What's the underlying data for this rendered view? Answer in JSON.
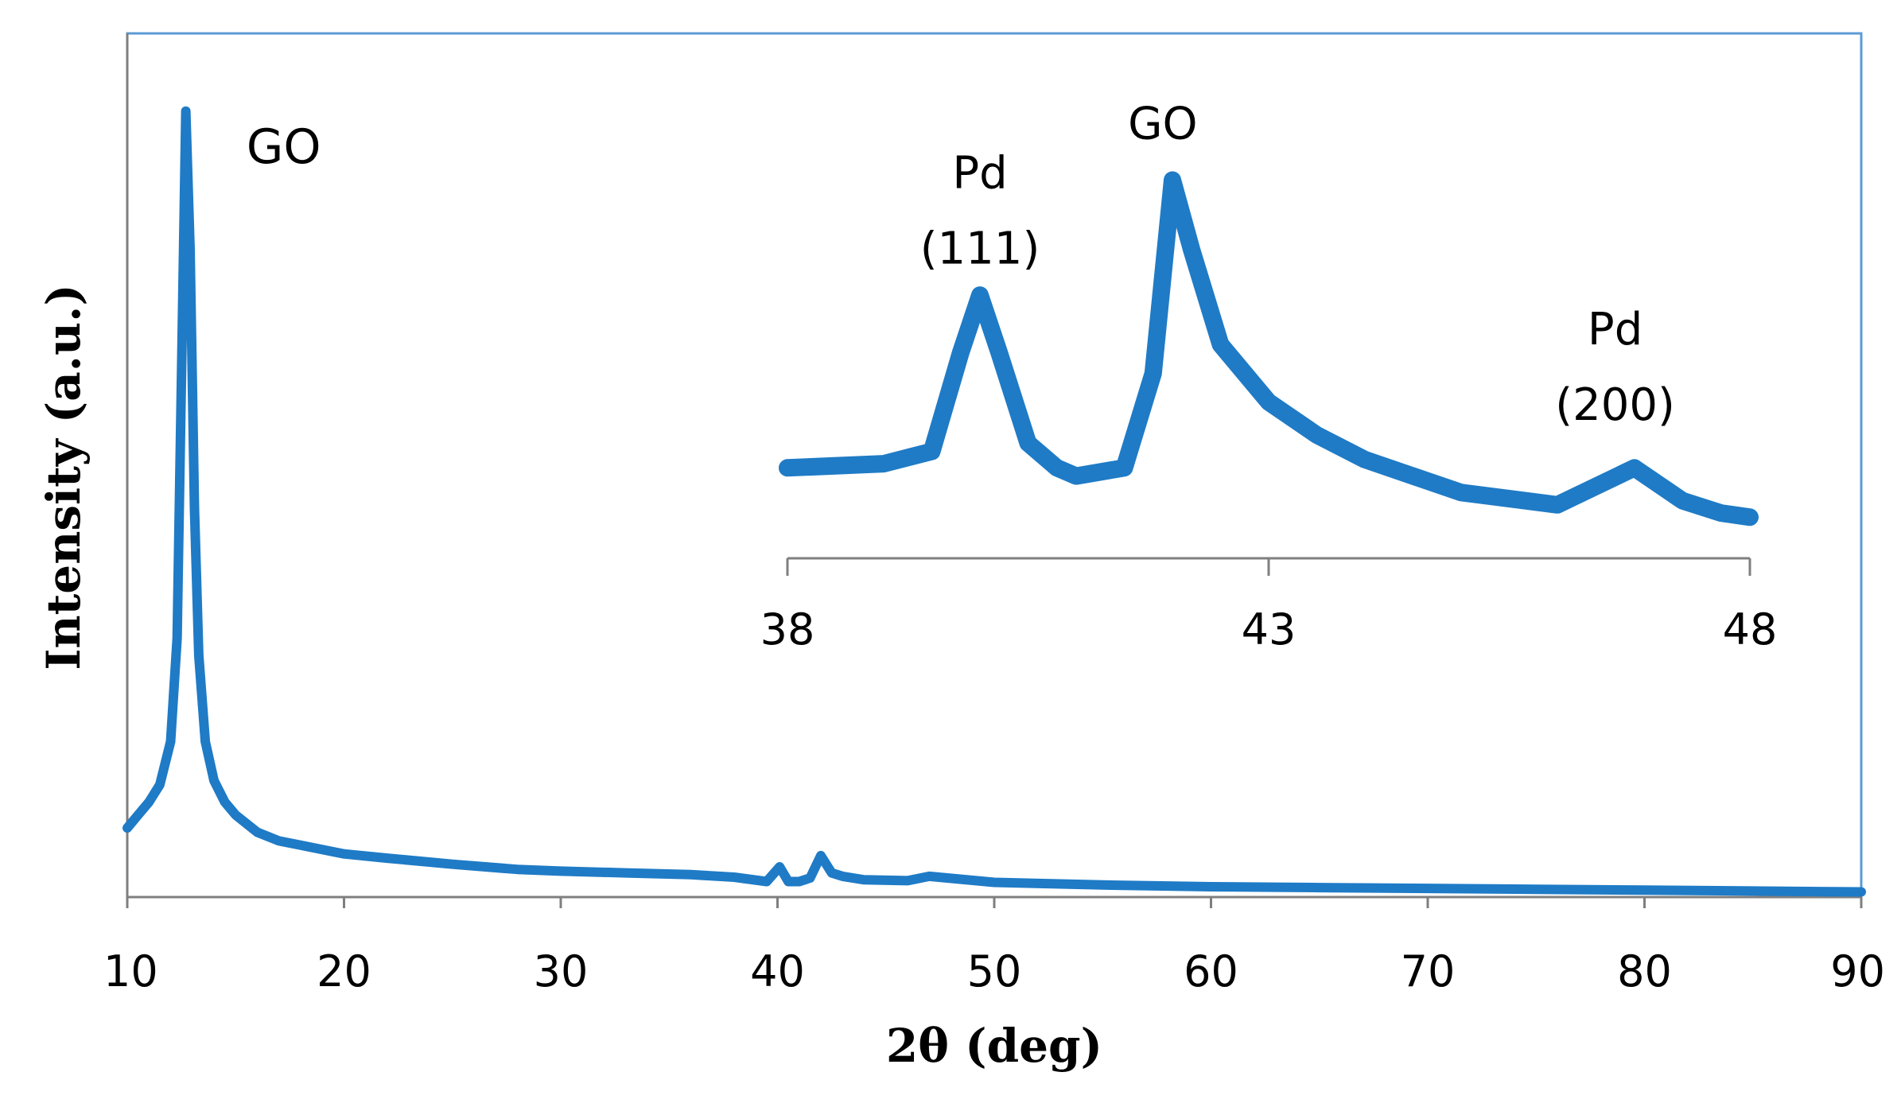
{
  "chart_data": [
    {
      "id": "main",
      "type": "line",
      "title": "",
      "xlabel": "2θ (deg)",
      "ylabel": "Intensity (a.u.)",
      "xlim": [
        10,
        90
      ],
      "ylim": [
        0,
        100
      ],
      "x_ticks": [
        "10",
        "20",
        "30",
        "40",
        "50",
        "60",
        "70",
        "80",
        "90"
      ],
      "y_ticks": [],
      "grid": false,
      "legend": "none",
      "series_color": "#1f7bc6",
      "frame_color": "#5b9bd5",
      "series": [
        {
          "x": [
            10,
            10.5,
            11,
            11.5,
            12,
            12.3,
            12.5,
            12.7,
            12.9,
            13.1,
            13.3,
            13.6,
            14,
            14.5,
            15,
            16,
            17,
            18,
            20,
            22,
            25,
            28,
            30,
            33,
            36,
            38,
            39.5,
            40.1,
            40.5,
            41,
            41.5,
            42,
            42.5,
            43,
            44,
            46,
            47,
            50,
            55,
            60,
            65,
            70,
            75,
            80,
            85,
            90
          ],
          "y": [
            8,
            9.5,
            11,
            13,
            18,
            30,
            60,
            91,
            75,
            45,
            28,
            18,
            13.5,
            11,
            9.5,
            7.5,
            6.5,
            6,
            5,
            4.5,
            3.8,
            3.2,
            3,
            2.8,
            2.6,
            2.3,
            1.8,
            3.5,
            1.8,
            1.8,
            2.2,
            4.8,
            2.8,
            2.4,
            2,
            1.9,
            2.4,
            1.7,
            1.4,
            1.2,
            1.1,
            1,
            0.9,
            0.8,
            0.7,
            0.6
          ]
        }
      ],
      "annotations": [
        {
          "text": "GO",
          "x": 15.5,
          "y": 85
        }
      ]
    },
    {
      "id": "inset",
      "type": "line",
      "title": "",
      "xlabel": "",
      "ylabel": "",
      "xlim": [
        38,
        48
      ],
      "ylim": [
        0,
        100
      ],
      "x_ticks": [
        "38",
        "43",
        "48"
      ],
      "grid": false,
      "legend": "none",
      "series_color": "#1f7bc6",
      "series": [
        {
          "x": [
            38,
            39,
            39.5,
            39.8,
            40,
            40.2,
            40.5,
            40.8,
            41,
            41.5,
            41.8,
            42,
            42.2,
            42.5,
            43,
            43.5,
            44,
            45,
            46,
            46.8,
            47.3,
            47.7,
            48
          ],
          "y": [
            22,
            23,
            26,
            50,
            64,
            50,
            28,
            22,
            20,
            22,
            45,
            92,
            75,
            52,
            38,
            30,
            24,
            16,
            13,
            22,
            14,
            11,
            10
          ]
        }
      ],
      "annotations": [
        {
          "text": "Pd",
          "line2": "(111)",
          "x": 40.0,
          "y": 90
        },
        {
          "text": "GO",
          "line2": "",
          "x": 41.9,
          "y": 102
        },
        {
          "text": "Pd",
          "line2": "(200)",
          "x": 46.6,
          "y": 52
        }
      ]
    }
  ]
}
